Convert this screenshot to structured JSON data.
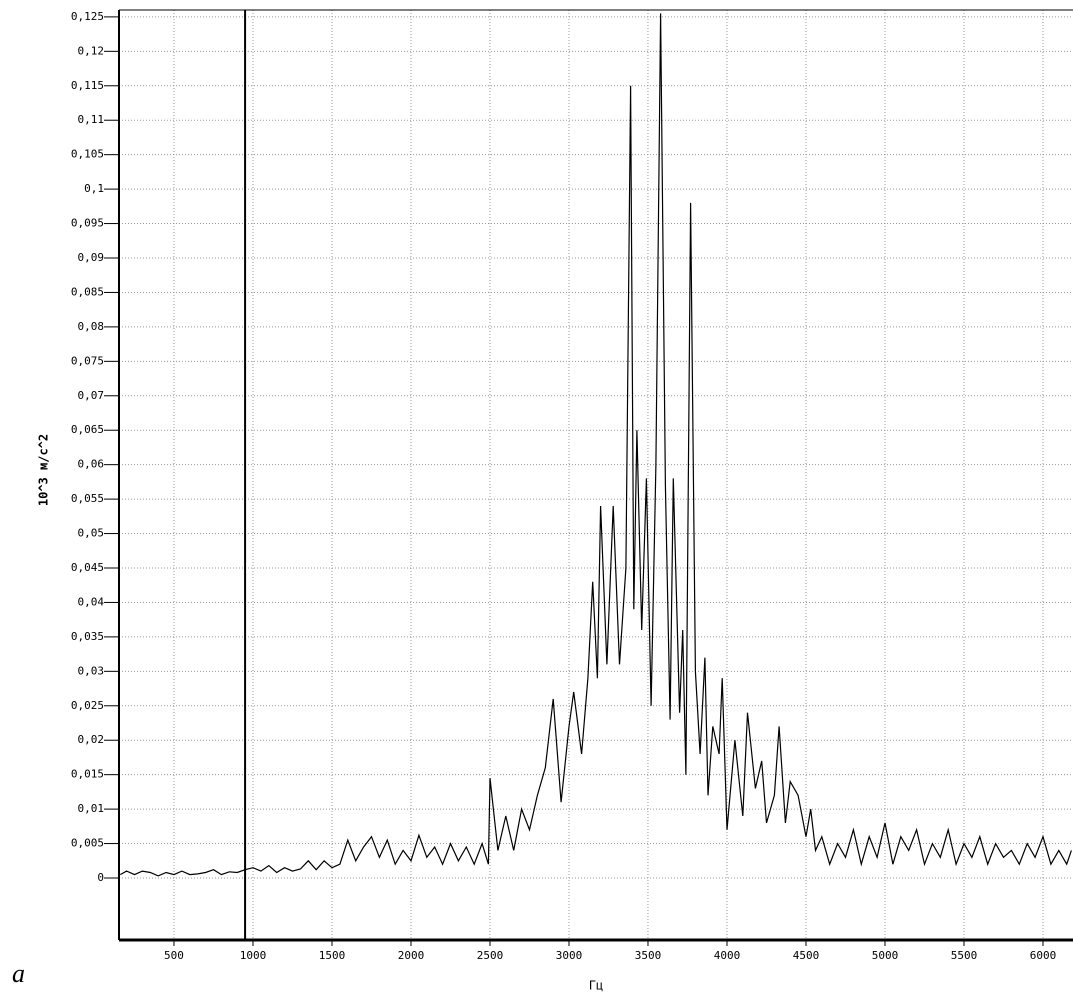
{
  "chart_data": {
    "type": "line",
    "y_label": "10^3 м/с^2",
    "x_label": "Гц",
    "caption": "a",
    "color": "#000000",
    "grid": true,
    "xlim": [
      152,
      6190
    ],
    "ylim": [
      -0.009,
      0.126
    ],
    "cursor_x": 950,
    "xticks": [
      500,
      1000,
      1500,
      2000,
      2500,
      3000,
      3500,
      4000,
      4500,
      5000,
      5500,
      6000
    ],
    "yticks": [
      0,
      {
        "value": 0.005,
        "label": "0,005"
      },
      {
        "value": 0.01,
        "label": "0,01"
      },
      {
        "value": 0.015,
        "label": "0,015"
      },
      {
        "value": 0.02,
        "label": "0,02"
      },
      {
        "value": 0.025,
        "label": "0,025"
      },
      {
        "value": 0.03,
        "label": "0,03"
      },
      {
        "value": 0.035,
        "label": "0,035"
      },
      {
        "value": 0.04,
        "label": "0,04"
      },
      {
        "value": 0.045,
        "label": "0,045"
      },
      {
        "value": 0.05,
        "label": "0,05"
      },
      {
        "value": 0.055,
        "label": "0,055"
      },
      {
        "value": 0.06,
        "label": "0,06"
      },
      {
        "value": 0.065,
        "label": "0,065"
      },
      {
        "value": 0.07,
        "label": "0,07"
      },
      {
        "value": 0.075,
        "label": "0,075"
      },
      {
        "value": 0.08,
        "label": "0,08"
      },
      {
        "value": 0.085,
        "label": "0,085"
      },
      {
        "value": 0.09,
        "label": "0,09"
      },
      {
        "value": 0.095,
        "label": "0,095"
      },
      {
        "value": 0.1,
        "label": "0,1"
      },
      {
        "value": 0.105,
        "label": "0,105"
      },
      {
        "value": 0.11,
        "label": "0,11"
      },
      {
        "value": 0.115,
        "label": "0,115"
      },
      {
        "value": 0.12,
        "label": "0,12"
      },
      {
        "value": 0.125,
        "label": "0,125"
      }
    ],
    "x": [
      160,
      200,
      250,
      300,
      350,
      400,
      450,
      500,
      550,
      600,
      650,
      700,
      750,
      800,
      850,
      900,
      950,
      1000,
      1050,
      1100,
      1150,
      1200,
      1250,
      1300,
      1350,
      1400,
      1450,
      1500,
      1550,
      1600,
      1650,
      1700,
      1750,
      1800,
      1850,
      1900,
      1950,
      2000,
      2050,
      2100,
      2150,
      2200,
      2250,
      2300,
      2350,
      2400,
      2450,
      2490,
      2500,
      2550,
      2600,
      2650,
      2700,
      2750,
      2800,
      2850,
      2900,
      2950,
      3000,
      3030,
      3080,
      3120,
      3150,
      3180,
      3200,
      3240,
      3280,
      3320,
      3360,
      3390,
      3410,
      3430,
      3460,
      3490,
      3520,
      3550,
      3580,
      3610,
      3640,
      3660,
      3700,
      3720,
      3740,
      3770,
      3800,
      3830,
      3860,
      3880,
      3910,
      3950,
      3970,
      4000,
      4050,
      4100,
      4130,
      4180,
      4220,
      4250,
      4300,
      4330,
      4370,
      4400,
      4450,
      4500,
      4530,
      4560,
      4600,
      4650,
      4700,
      4750,
      4800,
      4850,
      4900,
      4950,
      5000,
      5050,
      5100,
      5150,
      5200,
      5250,
      5300,
      5350,
      5400,
      5450,
      5500,
      5550,
      5600,
      5650,
      5700,
      5750,
      5800,
      5850,
      5900,
      5950,
      6000,
      6050,
      6100,
      6150,
      6180
    ],
    "values": [
      0.0005,
      0.001,
      0.0005,
      0.001,
      0.0008,
      0.0003,
      0.0008,
      0.0005,
      0.001,
      0.0005,
      0.0006,
      0.0008,
      0.0012,
      0.0005,
      0.0009,
      0.0008,
      0.0012,
      0.0015,
      0.001,
      0.0018,
      0.0008,
      0.0015,
      0.001,
      0.0013,
      0.0025,
      0.0012,
      0.0025,
      0.0015,
      0.002,
      0.0055,
      0.0025,
      0.0045,
      0.006,
      0.003,
      0.0055,
      0.002,
      0.004,
      0.0025,
      0.0062,
      0.003,
      0.0045,
      0.002,
      0.005,
      0.0025,
      0.0045,
      0.002,
      0.005,
      0.002,
      0.0145,
      0.004,
      0.009,
      0.004,
      0.01,
      0.007,
      0.012,
      0.016,
      0.026,
      0.011,
      0.022,
      0.027,
      0.018,
      0.029,
      0.043,
      0.029,
      0.054,
      0.031,
      0.054,
      0.031,
      0.045,
      0.115,
      0.039,
      0.065,
      0.036,
      0.058,
      0.025,
      0.06,
      0.1255,
      0.057,
      0.023,
      0.058,
      0.024,
      0.036,
      0.015,
      0.098,
      0.03,
      0.018,
      0.032,
      0.012,
      0.022,
      0.018,
      0.029,
      0.007,
      0.02,
      0.009,
      0.024,
      0.013,
      0.017,
      0.008,
      0.012,
      0.022,
      0.008,
      0.014,
      0.012,
      0.006,
      0.01,
      0.004,
      0.006,
      0.002,
      0.005,
      0.003,
      0.007,
      0.002,
      0.006,
      0.003,
      0.008,
      0.002,
      0.006,
      0.004,
      0.007,
      0.002,
      0.005,
      0.003,
      0.007,
      0.002,
      0.005,
      0.003,
      0.006,
      0.002,
      0.005,
      0.003,
      0.004,
      0.002,
      0.005,
      0.003,
      0.006,
      0.002,
      0.004,
      0.002,
      0.004
    ]
  }
}
